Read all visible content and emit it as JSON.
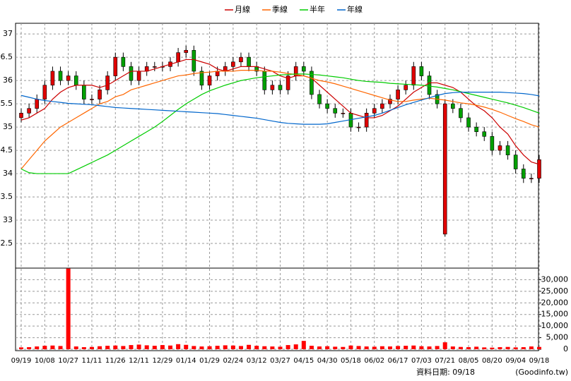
{
  "chart_data": [
    {
      "type": "candlestick",
      "x": [
        "09/19",
        null,
        null,
        "10/08",
        null,
        null,
        "10/27",
        null,
        null,
        "11/11",
        null,
        null,
        "11/26",
        null,
        null,
        "12/11",
        null,
        null,
        "12/29",
        null,
        null,
        "01/14",
        null,
        null,
        "01/29",
        null,
        null,
        "02/24",
        null,
        null,
        "03/12",
        null,
        null,
        "03/27",
        null,
        null,
        "04/15",
        null,
        null,
        "04/30",
        null,
        null,
        "05/18",
        null,
        null,
        "06/02",
        null,
        null,
        "06/17",
        null,
        null,
        "07/03",
        null,
        null,
        "07/21",
        null,
        null,
        "08/05",
        null,
        null,
        "08/20",
        null,
        null,
        "09/04",
        null,
        null,
        "09/18"
      ],
      "open": [
        35.2,
        35.3,
        35.4,
        35.6,
        35.9,
        36.2,
        36.0,
        36.1,
        35.9,
        35.6,
        35.6,
        35.8,
        36.1,
        36.5,
        36.3,
        36.0,
        36.2,
        36.3,
        36.3,
        36.3,
        36.4,
        36.6,
        36.65,
        36.2,
        35.9,
        36.1,
        36.2,
        36.3,
        36.4,
        36.5,
        36.3,
        36.2,
        35.8,
        35.9,
        35.8,
        36.1,
        36.3,
        36.2,
        35.7,
        35.5,
        35.4,
        35.3,
        35.3,
        35.0,
        35.0,
        35.3,
        35.4,
        35.5,
        35.6,
        35.8,
        35.9,
        36.3,
        36.1,
        35.7,
        32.7,
        35.5,
        35.4,
        35.2,
        35.0,
        34.9,
        34.8,
        34.5,
        34.6,
        34.4,
        34.1,
        33.9,
        33.9
      ],
      "high": [
        35.4,
        35.5,
        35.7,
        36.0,
        36.3,
        36.3,
        36.2,
        36.2,
        36.0,
        35.7,
        35.9,
        36.2,
        36.6,
        36.6,
        36.4,
        36.3,
        36.4,
        36.4,
        36.4,
        36.5,
        36.7,
        36.75,
        36.75,
        36.3,
        36.2,
        36.3,
        36.4,
        36.5,
        36.6,
        36.6,
        36.4,
        36.3,
        36.0,
        36.0,
        36.2,
        36.4,
        36.4,
        36.3,
        35.8,
        35.6,
        35.5,
        35.4,
        35.4,
        35.1,
        35.4,
        35.5,
        35.6,
        35.7,
        35.9,
        36.0,
        36.4,
        36.4,
        36.2,
        35.8,
        35.6,
        35.6,
        35.5,
        35.3,
        35.1,
        35.0,
        34.9,
        34.7,
        34.7,
        34.5,
        34.2,
        34.0,
        34.4
      ],
      "low": [
        35.1,
        35.2,
        35.3,
        35.5,
        35.8,
        35.9,
        35.9,
        35.8,
        35.5,
        35.5,
        35.5,
        35.7,
        36.0,
        36.2,
        35.9,
        35.9,
        36.1,
        36.2,
        36.2,
        36.2,
        36.3,
        36.5,
        36.1,
        35.8,
        35.8,
        36.0,
        36.1,
        36.2,
        36.3,
        36.2,
        36.1,
        35.7,
        35.7,
        35.7,
        35.7,
        36.0,
        36.1,
        35.6,
        35.4,
        35.3,
        35.2,
        35.2,
        34.9,
        34.9,
        34.9,
        35.2,
        35.3,
        35.4,
        35.5,
        35.7,
        35.8,
        36.0,
        35.6,
        35.4,
        32.65,
        35.3,
        35.1,
        34.9,
        34.8,
        34.7,
        34.4,
        34.4,
        34.3,
        34.0,
        33.8,
        33.8,
        33.8
      ],
      "close": [
        35.3,
        35.4,
        35.6,
        35.9,
        36.2,
        36.0,
        36.1,
        35.9,
        35.6,
        35.6,
        35.8,
        36.1,
        36.5,
        36.3,
        36.0,
        36.2,
        36.3,
        36.3,
        36.3,
        36.4,
        36.6,
        36.65,
        36.2,
        35.9,
        36.1,
        36.2,
        36.3,
        36.4,
        36.5,
        36.3,
        36.2,
        35.8,
        35.9,
        35.8,
        36.1,
        36.3,
        36.2,
        35.7,
        35.5,
        35.4,
        35.3,
        35.3,
        35.0,
        35.0,
        35.3,
        35.4,
        35.5,
        35.6,
        35.8,
        35.9,
        36.3,
        36.1,
        35.7,
        35.5,
        35.5,
        35.4,
        35.2,
        35.0,
        34.9,
        34.8,
        34.5,
        34.6,
        34.4,
        34.1,
        33.9,
        33.9,
        34.3
      ],
      "up_color": "#e00000",
      "down_color": "#00a000",
      "series": [
        {
          "name": "月線",
          "color": "#cc0000",
          "values": [
            35.15,
            35.2,
            35.3,
            35.4,
            35.6,
            35.75,
            35.85,
            35.9,
            35.9,
            35.9,
            35.85,
            35.9,
            36.0,
            36.1,
            36.2,
            36.2,
            36.2,
            36.25,
            36.3,
            36.35,
            36.4,
            36.45,
            36.45,
            36.4,
            36.35,
            36.25,
            36.2,
            36.25,
            36.3,
            36.3,
            36.3,
            36.25,
            36.2,
            36.1,
            36.05,
            36.1,
            36.1,
            36.05,
            35.9,
            35.75,
            35.6,
            35.45,
            35.3,
            35.25,
            35.2,
            35.2,
            35.25,
            35.35,
            35.45,
            35.6,
            35.75,
            35.85,
            35.95,
            35.95,
            35.9,
            35.85,
            35.75,
            35.6,
            35.45,
            35.35,
            35.2,
            35.0,
            34.85,
            34.6,
            34.4,
            34.25,
            34.2
          ]
        },
        {
          "name": "季線",
          "color": "#ff6600",
          "values": [
            34.1,
            34.3,
            34.5,
            34.7,
            34.85,
            35.0,
            35.1,
            35.2,
            35.3,
            35.4,
            35.5,
            35.55,
            35.65,
            35.7,
            35.8,
            35.85,
            35.9,
            35.95,
            36.0,
            36.05,
            36.1,
            36.12,
            36.15,
            36.17,
            36.18,
            36.2,
            36.2,
            36.2,
            36.22,
            36.22,
            36.22,
            36.2,
            36.2,
            36.18,
            36.15,
            36.13,
            36.1,
            36.05,
            36.0,
            35.97,
            35.93,
            35.88,
            35.83,
            35.78,
            35.73,
            35.68,
            35.63,
            35.58,
            35.55,
            35.55,
            35.58,
            35.6,
            35.62,
            35.6,
            35.58,
            35.55,
            35.52,
            35.5,
            35.47,
            35.43,
            35.38,
            35.32,
            35.25,
            35.18,
            35.12,
            35.05,
            35.0
          ]
        },
        {
          "name": "半年",
          "color": "#00cc00",
          "values": [
            34.1,
            34.02,
            34.0,
            34.0,
            34.0,
            34.0,
            34.0,
            34.08,
            34.16,
            34.24,
            34.32,
            34.4,
            34.5,
            34.6,
            34.7,
            34.8,
            34.9,
            35.0,
            35.12,
            35.25,
            35.38,
            35.5,
            35.6,
            35.7,
            35.78,
            35.84,
            35.9,
            35.95,
            36.0,
            36.03,
            36.06,
            36.08,
            36.1,
            36.12,
            36.13,
            36.14,
            36.14,
            36.13,
            36.12,
            36.1,
            36.08,
            36.06,
            36.03,
            36.0,
            35.98,
            35.97,
            35.96,
            35.94,
            35.93,
            35.92,
            35.91,
            35.9,
            35.88,
            35.86,
            35.83,
            35.8,
            35.76,
            35.72,
            35.68,
            35.64,
            35.6,
            35.56,
            35.52,
            35.47,
            35.42,
            35.36,
            35.3
          ]
        },
        {
          "name": "年線",
          "color": "#0066cc",
          "values": [
            35.68,
            35.64,
            35.6,
            35.57,
            35.55,
            35.53,
            35.51,
            35.5,
            35.49,
            35.48,
            35.46,
            35.44,
            35.42,
            35.41,
            35.4,
            35.39,
            35.38,
            35.37,
            35.36,
            35.35,
            35.34,
            35.33,
            35.32,
            35.31,
            35.3,
            35.29,
            35.27,
            35.25,
            35.23,
            35.21,
            35.19,
            35.16,
            35.13,
            35.1,
            35.08,
            35.07,
            35.06,
            35.06,
            35.06,
            35.07,
            35.1,
            35.13,
            35.16,
            35.19,
            35.22,
            35.25,
            35.3,
            35.36,
            35.42,
            35.48,
            35.53,
            35.58,
            35.63,
            35.68,
            35.72,
            35.74,
            35.75,
            35.75,
            35.75,
            35.75,
            35.75,
            35.75,
            35.74,
            35.73,
            35.72,
            35.7,
            35.67
          ]
        }
      ],
      "ylim": [
        31.97,
        37.23
      ],
      "yticks": [
        37,
        {
          "value": 36.5,
          "label": "6.5"
        },
        36,
        {
          "value": 35.5,
          "label": "5.5"
        },
        35,
        {
          "value": 34.5,
          "label": "4.5"
        },
        34,
        {
          "value": 33.5,
          "label": "3.5"
        },
        33,
        {
          "value": 32.5,
          "label": "2.5"
        }
      ],
      "grid": true
    },
    {
      "type": "bar",
      "color": "#ff0000",
      "values": [
        800,
        900,
        1200,
        1500,
        1600,
        1400,
        34800,
        1200,
        900,
        1000,
        1300,
        1500,
        1600,
        1400,
        1800,
        2000,
        1700,
        1500,
        1800,
        1600,
        2200,
        1900,
        1400,
        1200,
        1300,
        1500,
        1700,
        1600,
        1400,
        1900,
        1500,
        1300,
        1200,
        1100,
        1800,
        2100,
        3600,
        1500,
        1200,
        1300,
        1100,
        1000,
        1600,
        1400,
        1200,
        1100,
        1300,
        1200,
        1400,
        1500,
        1600,
        1300,
        1200,
        1400,
        3000,
        1200,
        1000,
        900,
        1100,
        800,
        700,
        900,
        1000,
        800,
        900,
        1200,
        1000
      ],
      "ylim": [
        0,
        35000
      ],
      "yticks": [
        0,
        {
          "value": 5000,
          "label": "5,000"
        },
        {
          "value": 10000,
          "label": "10,000"
        },
        {
          "value": 15000,
          "label": "15,000"
        },
        {
          "value": 20000,
          "label": "20,000"
        },
        {
          "value": 25000,
          "label": "25,000"
        },
        {
          "value": 30000,
          "label": "30,000"
        }
      ],
      "grid": true
    }
  ],
  "footer": {
    "date": "資料日期: 09/18",
    "source": "(Goodinfo.tw)"
  }
}
